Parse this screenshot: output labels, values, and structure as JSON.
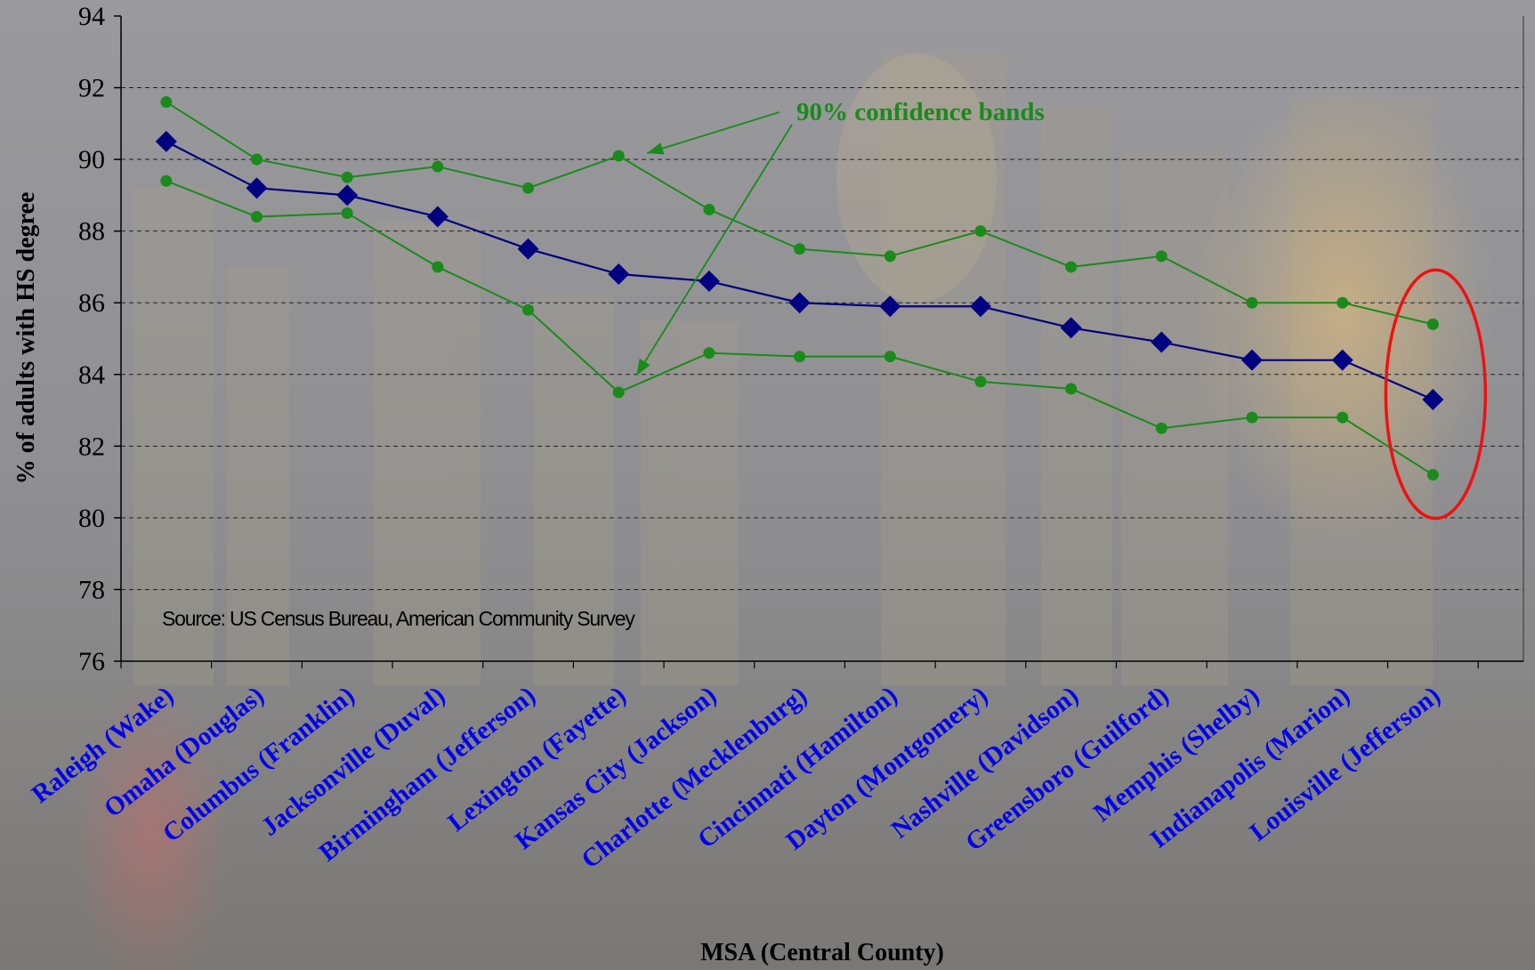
{
  "chart_data": {
    "type": "line",
    "xlabel": "MSA (Central County)",
    "ylabel": "% of adults with HS degree",
    "ylim": [
      76,
      94
    ],
    "yticks": [
      76,
      78,
      80,
      82,
      84,
      86,
      88,
      90,
      92,
      94
    ],
    "grid": "horizontal dashed",
    "categories": [
      "Raleigh (Wake)",
      "Omaha (Douglas)",
      "Columbus (Franklin)",
      "Jacksonville (Duval)",
      "Birmingham (Jefferson)",
      "Lexington (Fayette)",
      "Kansas City (Jackson)",
      "Charlotte (Mecklenburg)",
      "Cincinnati (Hamilton)",
      "Dayton (Montgomery)",
      "Nashville (Davidson)",
      "Greensboro (Guilford)",
      "Memphis (Shelby)",
      "Indianapolis (Marion)",
      "Louisville (Jefferson)"
    ],
    "series": [
      {
        "role": "estimate",
        "color": "#000080",
        "marker": "diamond",
        "values": [
          90.5,
          89.2,
          89.0,
          88.4,
          87.5,
          86.8,
          86.6,
          86.0,
          85.9,
          85.9,
          85.3,
          84.9,
          84.4,
          84.4,
          83.3
        ]
      },
      {
        "role": "upper-confidence-band",
        "color": "#1a8a1a",
        "marker": "circle",
        "values": [
          91.6,
          90.0,
          89.5,
          89.8,
          89.2,
          90.1,
          88.6,
          87.5,
          87.3,
          88.0,
          87.0,
          87.3,
          86.0,
          86.0,
          85.4
        ]
      },
      {
        "role": "lower-confidence-band",
        "color": "#1a8a1a",
        "marker": "circle",
        "values": [
          89.4,
          88.4,
          88.5,
          87.0,
          85.8,
          83.5,
          84.6,
          84.5,
          84.5,
          83.8,
          83.6,
          82.5,
          82.8,
          82.8,
          81.2
        ]
      }
    ],
    "annotations": {
      "confidence_label": "90% confidence bands",
      "source": "Source: US Census Bureau, American Community Survey",
      "highlight_color": "#ee1111",
      "highlight_category": "Louisville (Jefferson)"
    }
  }
}
